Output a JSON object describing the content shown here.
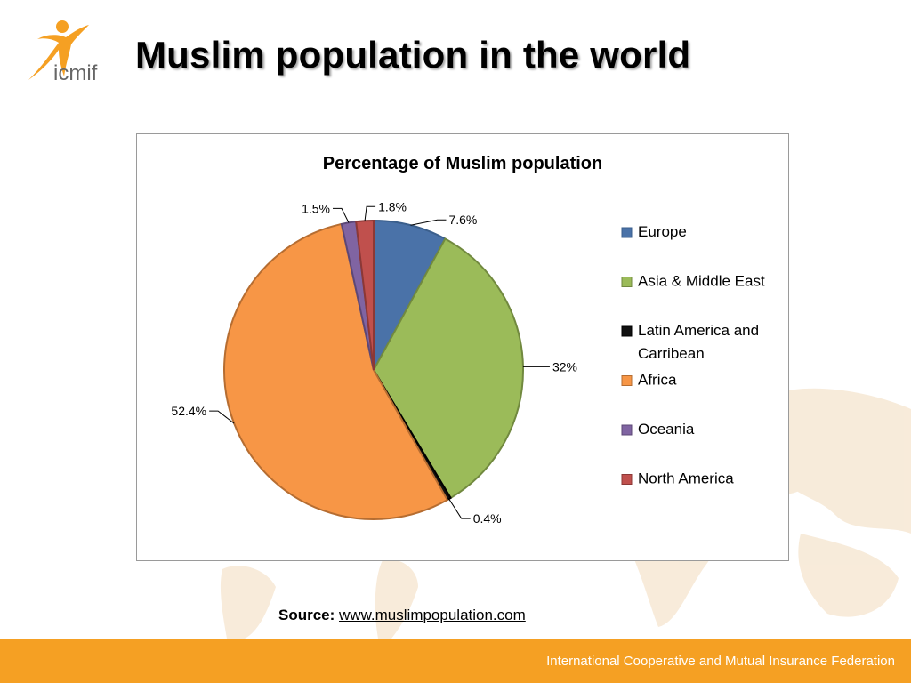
{
  "slide": {
    "title": "Muslim population in the world",
    "logo_text": "icmif",
    "source_label": "Source:",
    "source_link": "www.muslimpopulation.com",
    "footer": "International Cooperative and Mutual Insurance Federation"
  },
  "colors": {
    "footer": "#f5a023",
    "logo": "#f5a023"
  },
  "chart_data": {
    "type": "pie",
    "title": "Percentage of Muslim population",
    "legend_position": "right",
    "slices": [
      {
        "name": "Europe",
        "value": 7.6,
        "label": "7.6%",
        "color": "#4a72a8",
        "edge": "#3b5f8c"
      },
      {
        "name": "Asia & Middle East",
        "value": 32,
        "label": "32%",
        "color": "#9bbb59",
        "edge": "#71893f"
      },
      {
        "name": "Latin America and Carribean",
        "value": 0.4,
        "label": "0.4%",
        "color": "#111111",
        "edge": "#000000"
      },
      {
        "name": "Africa",
        "value": 52.4,
        "label": "52.4%",
        "color": "#f79646",
        "edge": "#b66d31"
      },
      {
        "name": "Oceania",
        "value": 1.5,
        "label": "1.5%",
        "color": "#8064a2",
        "edge": "#5c4776"
      },
      {
        "name": "North America",
        "value": 1.8,
        "label": "1.8%",
        "color": "#c0504d",
        "edge": "#8c3836"
      }
    ],
    "legend_lines": [
      [
        "Europe"
      ],
      [
        "Asia & Middle East"
      ],
      [
        "Latin America and",
        "Carribean"
      ],
      [
        "Africa"
      ],
      [
        "Oceania"
      ],
      [
        "North America"
      ]
    ]
  }
}
